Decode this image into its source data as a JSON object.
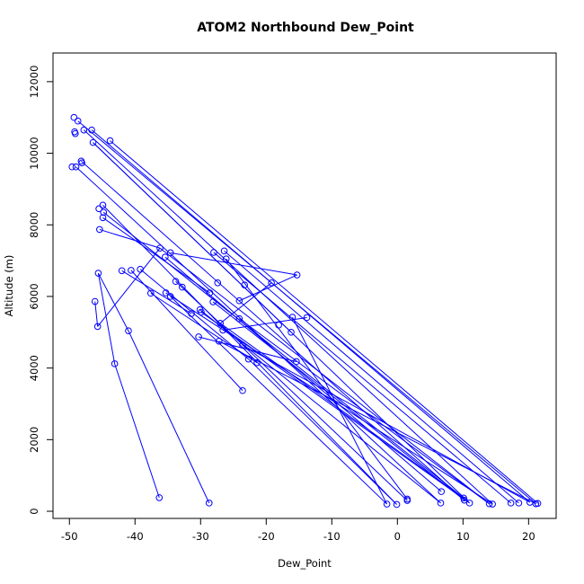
{
  "chart_data": {
    "type": "line",
    "title": "ATOM2 Northbound Dew_Point",
    "xlabel": "Dew_Point",
    "ylabel": "Altitude (m)",
    "xlim": [
      -52.5,
      24.2
    ],
    "ylim": [
      -200,
      12800
    ],
    "xticks": [
      -50,
      -40,
      -30,
      -20,
      -10,
      0,
      10,
      20
    ],
    "yticks": [
      0,
      2000,
      4000,
      6000,
      8000,
      10000,
      12000
    ],
    "grid": false,
    "legend": "none",
    "marker": "open-circle",
    "color": "#0000ff",
    "series": [
      {
        "points": [
          [
            -49.3,
            11000
          ],
          [
            -48.7,
            10900
          ],
          [
            -49.2,
            10600
          ],
          [
            -47.8,
            10650
          ],
          [
            -46.6,
            10650
          ],
          [
            -49.1,
            10550
          ],
          [
            -46.4,
            10300
          ],
          [
            -43.8,
            10350
          ],
          [
            -48.2,
            9780
          ],
          [
            -48.1,
            9730
          ],
          [
            -49.6,
            9620
          ],
          [
            -49.0,
            9620
          ],
          [
            -44.9,
            8550
          ],
          [
            -45.5,
            8450
          ],
          [
            -44.8,
            8350
          ],
          [
            -44.9,
            8200
          ],
          [
            -45.4,
            7870
          ],
          [
            -36.2,
            7350
          ],
          [
            -26.4,
            7270
          ],
          [
            -34.6,
            7220
          ],
          [
            -28.0,
            7230
          ],
          [
            -35.4,
            7100
          ],
          [
            -26.1,
            7050
          ],
          [
            -15.3,
            6600
          ],
          [
            -45.6,
            6650
          ],
          [
            -42.0,
            6720
          ],
          [
            -40.6,
            6730
          ],
          [
            -39.2,
            6760
          ],
          [
            -33.8,
            6420
          ],
          [
            -19.2,
            6380
          ],
          [
            -27.4,
            6380
          ],
          [
            -23.3,
            6320
          ],
          [
            -32.8,
            6260
          ],
          [
            -28.6,
            6100
          ],
          [
            -37.6,
            6090
          ],
          [
            -35.3,
            6100
          ],
          [
            -34.6,
            6000
          ],
          [
            -28.1,
            5850
          ],
          [
            -24.1,
            5880
          ],
          [
            -46.1,
            5860
          ],
          [
            -30.1,
            5630
          ],
          [
            -29.9,
            5560
          ],
          [
            -31.4,
            5520
          ],
          [
            -16.0,
            5420
          ],
          [
            -13.8,
            5410
          ],
          [
            -24.1,
            5380
          ],
          [
            -27.0,
            5250
          ],
          [
            -18.1,
            5200
          ],
          [
            -45.7,
            5160
          ],
          [
            -26.6,
            5060
          ],
          [
            -16.2,
            5000
          ],
          [
            -41.0,
            5040
          ],
          [
            -30.3,
            4870
          ],
          [
            -27.2,
            4750
          ],
          [
            -23.6,
            4640
          ],
          [
            -22.7,
            4250
          ],
          [
            -21.4,
            4150
          ],
          [
            -15.4,
            4180
          ],
          [
            -43.1,
            4120
          ],
          [
            -23.6,
            3370
          ],
          [
            -36.3,
            380
          ],
          [
            -28.7,
            230
          ],
          [
            -1.6,
            200
          ],
          [
            -0.1,
            190
          ],
          [
            1.5,
            340
          ],
          [
            1.5,
            300
          ],
          [
            6.7,
            550
          ],
          [
            6.6,
            230
          ],
          [
            10.1,
            370
          ],
          [
            10.2,
            310
          ],
          [
            11.0,
            230
          ],
          [
            14.0,
            210
          ],
          [
            14.5,
            200
          ],
          [
            17.3,
            230
          ],
          [
            18.5,
            230
          ],
          [
            20.2,
            250
          ],
          [
            21.1,
            210
          ],
          [
            21.4,
            220
          ]
        ],
        "segments": [
          [
            [
              -48.7,
              10900
            ],
            [
              21.1,
              210
            ]
          ],
          [
            [
              -47.8,
              10650
            ],
            [
              14.5,
              200
            ]
          ],
          [
            [
              -46.6,
              10650
            ],
            [
              20.2,
              250
            ]
          ],
          [
            [
              -46.4,
              10300
            ],
            [
              11.0,
              230
            ]
          ],
          [
            [
              -43.8,
              10350
            ],
            [
              21.4,
              220
            ]
          ],
          [
            [
              -48.2,
              9780
            ],
            [
              10.2,
              310
            ]
          ],
          [
            [
              -49.0,
              9620
            ],
            [
              6.6,
              230
            ]
          ],
          [
            [
              -46.4,
              10300
            ],
            [
              -16.2,
              5000
            ]
          ],
          [
            [
              -44.9,
              8550
            ],
            [
              -0.1,
              190
            ]
          ],
          [
            [
              -44.8,
              8350
            ],
            [
              10.1,
              370
            ]
          ],
          [
            [
              -44.9,
              8200
            ],
            [
              -28.6,
              6100
            ]
          ],
          [
            [
              -45.4,
              7870
            ],
            [
              -36.2,
              7350
            ]
          ],
          [
            [
              -36.2,
              7350
            ],
            [
              14.0,
              210
            ]
          ],
          [
            [
              -26.4,
              7270
            ],
            [
              18.5,
              230
            ]
          ],
          [
            [
              -34.6,
              7220
            ],
            [
              -15.3,
              6600
            ]
          ],
          [
            [
              -28.0,
              7230
            ],
            [
              17.3,
              230
            ]
          ],
          [
            [
              -35.4,
              7100
            ],
            [
              6.7,
              550
            ]
          ],
          [
            [
              -26.1,
              7050
            ],
            [
              1.5,
              340
            ]
          ],
          [
            [
              -15.3,
              6600
            ],
            [
              -24.1,
              5880
            ]
          ],
          [
            [
              -42.0,
              6720
            ],
            [
              -31.4,
              5520
            ]
          ],
          [
            [
              -40.6,
              6730
            ],
            [
              -23.6,
              3370
            ]
          ],
          [
            [
              -39.2,
              6760
            ],
            [
              -22.7,
              4250
            ]
          ],
          [
            [
              -33.8,
              6420
            ],
            [
              1.5,
              300
            ]
          ],
          [
            [
              -19.2,
              6380
            ],
            [
              -27.0,
              5250
            ]
          ],
          [
            [
              -37.6,
              6090
            ],
            [
              -21.4,
              4150
            ]
          ],
          [
            [
              -35.3,
              6100
            ],
            [
              14.5,
              200
            ]
          ],
          [
            [
              -34.6,
              6000
            ],
            [
              -1.6,
              200
            ]
          ],
          [
            [
              -28.1,
              5850
            ],
            [
              10.2,
              310
            ]
          ],
          [
            [
              -46.1,
              5860
            ],
            [
              -45.7,
              5160
            ]
          ],
          [
            [
              -45.7,
              5160
            ],
            [
              -36.2,
              7350
            ]
          ],
          [
            [
              -45.6,
              6650
            ],
            [
              -41.0,
              5040
            ]
          ],
          [
            [
              -41.0,
              5040
            ],
            [
              -28.7,
              230
            ]
          ],
          [
            [
              -45.6,
              6650
            ],
            [
              -43.1,
              4120
            ]
          ],
          [
            [
              -43.1,
              4120
            ],
            [
              -36.3,
              380
            ]
          ],
          [
            [
              -30.1,
              5630
            ],
            [
              6.6,
              230
            ]
          ],
          [
            [
              -29.9,
              5560
            ],
            [
              11.0,
              230
            ]
          ],
          [
            [
              -24.1,
              5380
            ],
            [
              14.0,
              210
            ]
          ],
          [
            [
              -27.0,
              5250
            ],
            [
              10.1,
              370
            ]
          ],
          [
            [
              -26.6,
              5060
            ],
            [
              -13.8,
              5410
            ]
          ],
          [
            [
              -30.3,
              4870
            ],
            [
              -15.4,
              4180
            ]
          ],
          [
            [
              -27.2,
              4750
            ],
            [
              21.1,
              210
            ]
          ],
          [
            [
              -23.6,
              4640
            ],
            [
              20.2,
              250
            ]
          ],
          [
            [
              -22.7,
              4250
            ],
            [
              -0.1,
              190
            ]
          ],
          [
            [
              -16.0,
              5420
            ],
            [
              -1.6,
              200
            ]
          ]
        ]
      }
    ]
  }
}
